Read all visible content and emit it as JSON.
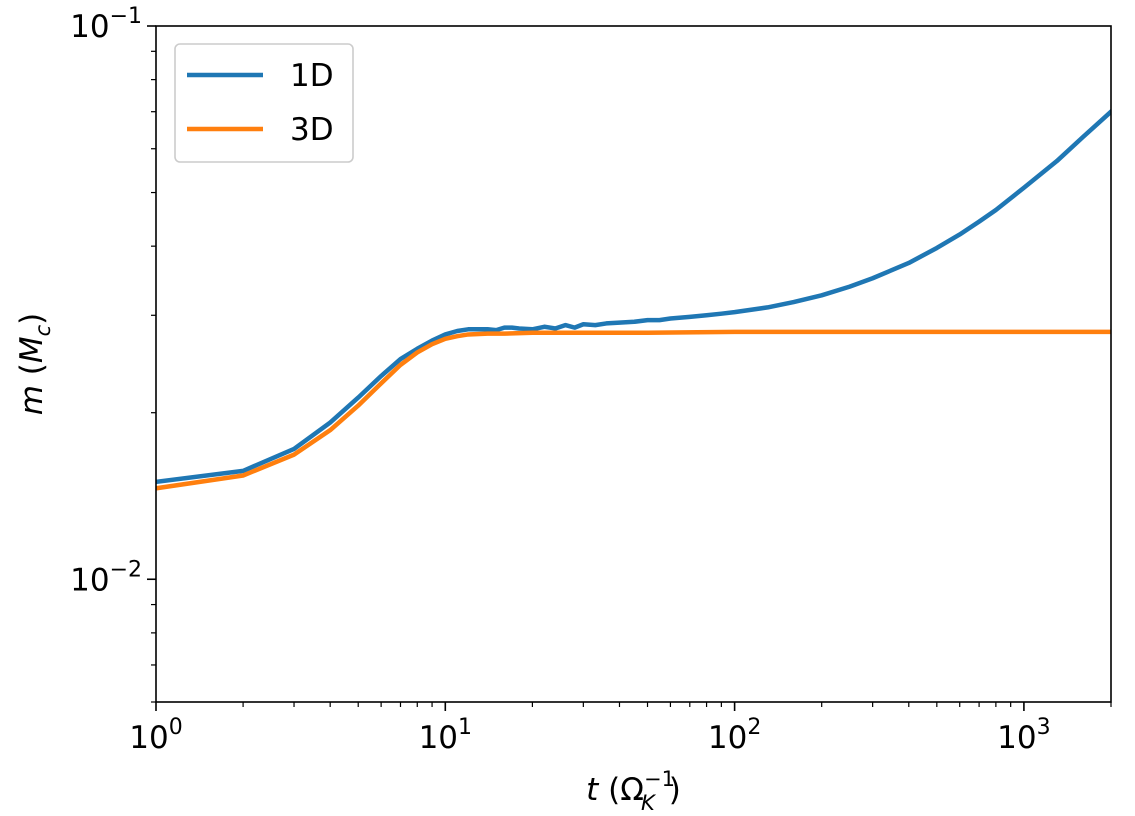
{
  "chart_data": {
    "type": "line",
    "title": "",
    "xscale": "log",
    "yscale": "log",
    "xlim": [
      1,
      2000
    ],
    "ylim": [
      0.006,
      0.1
    ],
    "grid": false,
    "legend_position": "top-left",
    "xlabel": {
      "var": "t",
      "open": " (",
      "main": "Ω",
      "sub": "K",
      "sup": "−1",
      "close": ")"
    },
    "ylabel": {
      "var": "m",
      "open": " (",
      "main": "M",
      "sub": "c",
      "close": ")"
    },
    "x_major_ticks": [
      {
        "value": 1,
        "base": "10",
        "exp": "0"
      },
      {
        "value": 10,
        "base": "10",
        "exp": "1"
      },
      {
        "value": 100,
        "base": "10",
        "exp": "2"
      },
      {
        "value": 1000,
        "base": "10",
        "exp": "3"
      }
    ],
    "y_major_ticks": [
      {
        "value": 0.01,
        "base": "10",
        "exp": "−2"
      },
      {
        "value": 0.1,
        "base": "10",
        "exp": "−1"
      }
    ],
    "series": [
      {
        "name": "1D",
        "color": "#1f77b4",
        "x": [
          1,
          2,
          3,
          4,
          5,
          6,
          7,
          8,
          9,
          10,
          11,
          12,
          13,
          14,
          15,
          16,
          17,
          18,
          20,
          22,
          24,
          26,
          28,
          30,
          33,
          36,
          40,
          45,
          50,
          55,
          60,
          70,
          80,
          90,
          100,
          130,
          160,
          200,
          250,
          300,
          400,
          500,
          600,
          700,
          800,
          1000,
          1300,
          1600,
          2000
        ],
        "y": [
          0.015,
          0.0157,
          0.0172,
          0.0192,
          0.0213,
          0.0233,
          0.025,
          0.0261,
          0.027,
          0.0277,
          0.0281,
          0.0283,
          0.0283,
          0.0283,
          0.0282,
          0.0285,
          0.0285,
          0.0284,
          0.0283,
          0.0286,
          0.0284,
          0.0288,
          0.0285,
          0.0289,
          0.0288,
          0.029,
          0.0291,
          0.0292,
          0.0294,
          0.0294,
          0.0296,
          0.0298,
          0.03,
          0.0302,
          0.0304,
          0.031,
          0.0317,
          0.0326,
          0.0338,
          0.035,
          0.0373,
          0.0397,
          0.042,
          0.0443,
          0.0465,
          0.051,
          0.057,
          0.063,
          0.07
        ]
      },
      {
        "name": "3D",
        "color": "#ff7f0e",
        "x": [
          1,
          2,
          3,
          4,
          5,
          6,
          7,
          8,
          9,
          10,
          11,
          12,
          14,
          16,
          20,
          30,
          50,
          100,
          200,
          500,
          1000,
          2000
        ],
        "y": [
          0.0146,
          0.0154,
          0.0168,
          0.0186,
          0.0206,
          0.0226,
          0.0244,
          0.0257,
          0.0266,
          0.0272,
          0.0275,
          0.0277,
          0.0278,
          0.0278,
          0.0279,
          0.0279,
          0.0279,
          0.028,
          0.028,
          0.028,
          0.028,
          0.028
        ]
      }
    ]
  }
}
